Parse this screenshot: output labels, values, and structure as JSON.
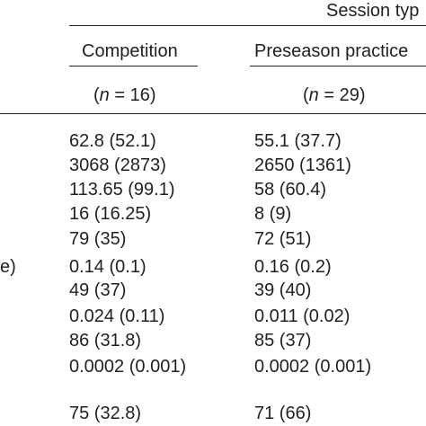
{
  "table": {
    "spanner_header": "Session typ",
    "columns": [
      {
        "label": "Competition",
        "n_prefix": "(",
        "n_symbol": "n",
        "n_suffix": " = 16)"
      },
      {
        "label": "Preseason practice",
        "n_prefix": "(",
        "n_symbol": "n",
        "n_suffix": " = 29)"
      }
    ],
    "row_label_fragment": "e)",
    "rows": [
      [
        "62.8 (52.1)",
        "55.1 (37.7)"
      ],
      [
        "3068 (2873)",
        "2650 (1361)"
      ],
      [
        "113.65 (99.1)",
        "58 (60.4)"
      ],
      [
        "16 (16.25)",
        "8 (9)"
      ],
      [
        "79 (35)",
        "72 (51)"
      ],
      [
        "0.14 (0.1)",
        "0.16 (0.2)"
      ],
      [
        "49 (37)",
        "39 (40)"
      ],
      [
        "0.024 (0.11)",
        "0.011 (0.02)"
      ],
      [
        "86 (31.8)",
        "85 (37)"
      ],
      [
        "0.0002 (0.001)",
        "0.0002 (0.001)"
      ],
      [
        "75 (32.8)",
        "71 (66)"
      ]
    ]
  }
}
